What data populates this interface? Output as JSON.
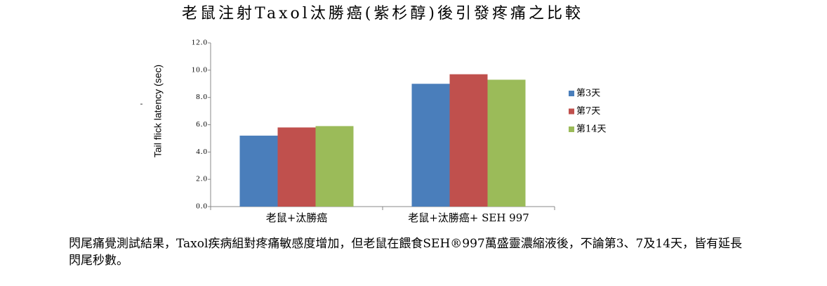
{
  "chart_data": {
    "type": "bar",
    "title": "老鼠注射Taxol汰勝癌(紫杉醇)後引發疼痛之比較",
    "y_label": "Tail flick latency (sec)",
    "annotation": "-",
    "categories": [
      "老鼠+汰勝癌",
      "老鼠+汰勝癌+ SEH 997"
    ],
    "series": [
      {
        "name": "第3天",
        "color": "#4a7ebb",
        "values": [
          5.2,
          9.0
        ]
      },
      {
        "name": "第7天",
        "color": "#c0504d",
        "values": [
          5.8,
          9.7
        ]
      },
      {
        "name": "第14天",
        "color": "#9bbb59",
        "values": [
          5.9,
          9.3
        ]
      }
    ],
    "ylim": [
      0,
      12
    ],
    "yticks": [
      {
        "value": 0,
        "label": "0.0"
      },
      {
        "value": 2,
        "label": "2.0"
      },
      {
        "value": 4,
        "label": "4.0"
      },
      {
        "value": 6,
        "label": "6.0"
      },
      {
        "value": 8,
        "label": "8.0"
      },
      {
        "value": 10,
        "label": "10.0"
      },
      {
        "value": 12,
        "label": "12.0"
      }
    ],
    "grid": false,
    "legend": "right"
  },
  "caption": "閃尾痛覺測試結果，Taxol疾病組對疼痛敏感度增加，但老鼠在餵食SEH®997萬盛靈濃縮液後，不論第3、7及14天，皆有延長閃尾秒數。"
}
